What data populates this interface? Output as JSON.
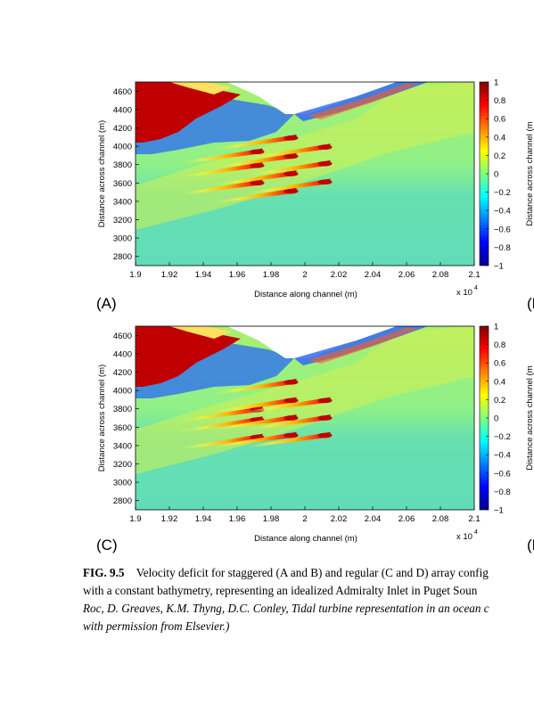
{
  "figure": {
    "panels": [
      {
        "id": "A",
        "label": "(A)",
        "cut_label": "(B",
        "arrangement": "staggered"
      },
      {
        "id": "C",
        "label": "(C)",
        "cut_label": "(D",
        "arrangement": "regular"
      }
    ],
    "axes": {
      "xlabel": "Distance along channel (m)",
      "ylabel": "Distance across channel (m)",
      "x_multiplier": "x 10",
      "x_multiplier_exp": "4",
      "xticks": [
        "1.9",
        "1.92",
        "1.94",
        "1.96",
        "1.98",
        "2",
        "2.02",
        "2.04",
        "2.06",
        "2.08",
        "2.1"
      ],
      "yticks": [
        "4600",
        "4400",
        "4200",
        "4000",
        "3800",
        "3600",
        "3400",
        "3200",
        "3000",
        "2800"
      ],
      "colorbar_ticks": [
        "1",
        "0.8",
        "0.6",
        "0.4",
        "0.2",
        "0",
        "−0.2",
        "−0.4",
        "−0.6",
        "−0.8",
        "−1"
      ],
      "cut_ylabel": "Distance across channel (m"
    }
  },
  "chart_data": [
    {
      "type": "heatmap",
      "panel": "A",
      "xlabel": "Distance along channel (m)",
      "ylabel": "Distance across channel (m)",
      "xlim": [
        19000,
        21000
      ],
      "ylim": [
        2700,
        4700
      ],
      "colorbar_range": [
        -1,
        1
      ],
      "colormap": "jet",
      "turbine_wakes": [
        {
          "x": 19750,
          "y": 3950
        },
        {
          "x": 19950,
          "y": 4100
        },
        {
          "x": 19750,
          "y": 3800
        },
        {
          "x": 19950,
          "y": 3900
        },
        {
          "x": 20150,
          "y": 4000
        },
        {
          "x": 19750,
          "y": 3610
        },
        {
          "x": 19950,
          "y": 3710
        },
        {
          "x": 20150,
          "y": 3820
        },
        {
          "x": 19950,
          "y": 3520
        },
        {
          "x": 20150,
          "y": 3620
        }
      ]
    },
    {
      "type": "heatmap",
      "panel": "C",
      "xlabel": "Distance along channel (m)",
      "ylabel": "Distance across channel (m)",
      "xlim": [
        19000,
        21000
      ],
      "ylim": [
        2700,
        4700
      ],
      "colorbar_range": [
        -1,
        1
      ],
      "colormap": "jet",
      "turbine_wakes": [
        {
          "x": 19950,
          "y": 4100
        },
        {
          "x": 19750,
          "y": 3800
        },
        {
          "x": 19950,
          "y": 3900
        },
        {
          "x": 20150,
          "y": 3900
        },
        {
          "x": 19750,
          "y": 3690
        },
        {
          "x": 19950,
          "y": 3710
        },
        {
          "x": 20150,
          "y": 3710
        },
        {
          "x": 19750,
          "y": 3500
        },
        {
          "x": 19950,
          "y": 3520
        },
        {
          "x": 20150,
          "y": 3520
        }
      ]
    }
  ],
  "caption": {
    "fig_label": "FIG. 9.5",
    "line1": "Velocity deficit for staggered (A and B) and regular (C and D) array config",
    "line2": "with a constant bathymetry, representing an idealized Admiralty Inlet in Puget Soun",
    "line3": "Roc, D. Greaves, K.M. Thyng, D.C. Conley, Tidal turbine representation in an ocean c",
    "line4": "with permission from Elsevier.)"
  },
  "colors": {
    "jet_low": "#00008f",
    "jet_mid": "#7fff7f",
    "jet_high": "#7f0000",
    "background_field": "#7fe6a0"
  }
}
